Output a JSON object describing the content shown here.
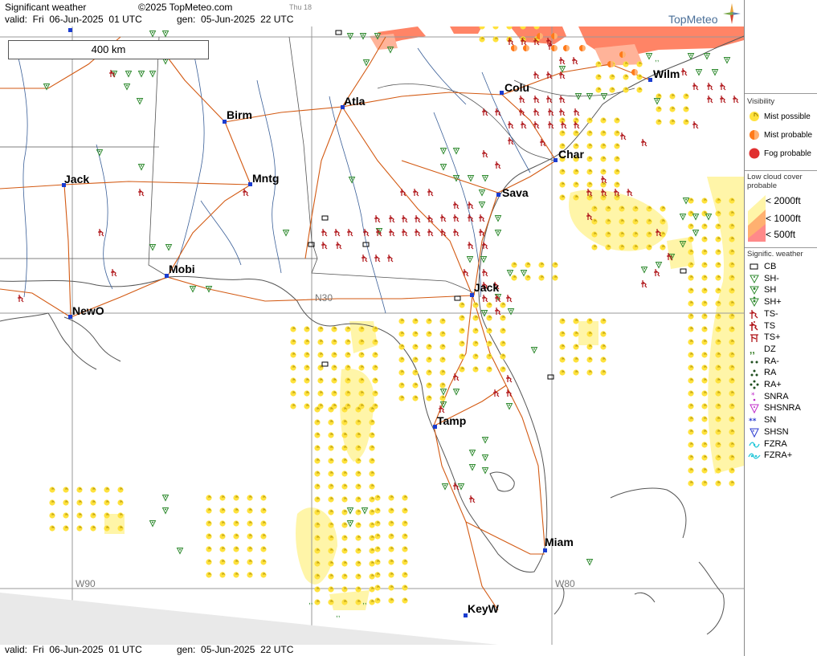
{
  "header": {
    "title": "Significant weather",
    "copyright": "©2025 TopMeteo.com",
    "day": "Thu 18",
    "valid": "valid:  Fri  06-Jun-2025  01 UTC",
    "gen": "gen:  05-Jun-2025  22 UTC"
  },
  "footer": {
    "valid": "valid:  Fri  06-Jun-2025  01 UTC",
    "gen": "gen:  05-Jun-2025  22 UTC"
  },
  "logo": {
    "name": "TopMeteo"
  },
  "scale": {
    "label": "400 km"
  },
  "map": {
    "cities": {
      "wilm": "Wilm",
      "colu": "Colu",
      "atla": "Atla",
      "birm": "Birm",
      "char": "Char",
      "sava": "Sava",
      "jack_ms": "Jack",
      "mntg": "Mntg",
      "mobi": "Mobi",
      "jack_fl": "Jack",
      "newo": "NewO",
      "tamp": "Tamp",
      "miam": "Miam",
      "keyw": "KeyW"
    },
    "grid_labels": {
      "n30": "N30",
      "w90": "W90",
      "w80": "W80"
    },
    "colors": {
      "mist": "#ffe23d",
      "mist_fill": "#fff5a8",
      "storm": "#b0161a",
      "shower": "#2f8a2f",
      "road": "#d35a13",
      "river": "#3a5f98",
      "coast": "#555555",
      "fog": "#ff7a5a"
    }
  },
  "legend": {
    "visibility": {
      "title": "Visibility",
      "items": [
        "Mist possible",
        "Mist probable",
        "Fog probable"
      ]
    },
    "low_cloud": {
      "title": "Low cloud cover probable",
      "items": [
        "< 2000ft",
        "< 1000ft",
        "<  500ft"
      ]
    },
    "sigwx": {
      "title": "Signific. weather",
      "items": [
        "CB",
        "SH-",
        "SH",
        "SH+",
        "TS-",
        "TS",
        "TS+",
        "DZ",
        "RA-",
        "RA",
        "RA+",
        "SNRA",
        "SHSNRA",
        "SN",
        "SHSN",
        "FZRA",
        "FZRA+"
      ]
    }
  }
}
